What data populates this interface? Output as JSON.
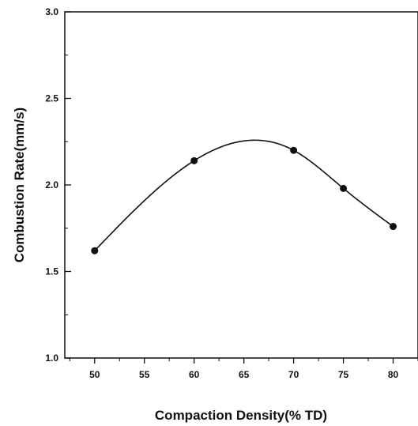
{
  "chart_data": {
    "type": "line",
    "xlabel": "Compaction Density(% TD)",
    "ylabel": "Combustion Rate(mm/s)",
    "xlim": [
      47,
      82.5
    ],
    "ylim": [
      1.0,
      3.0
    ],
    "x_ticks": [
      "50",
      "55",
      "60",
      "65",
      "70",
      "75",
      "80"
    ],
    "y_ticks": [
      "1.0",
      "1.5",
      "2.0",
      "2.5",
      "3.0"
    ],
    "grid": false,
    "smooth_curve": true,
    "series": [
      {
        "x": [
          50,
          60,
          70,
          75,
          80
        ],
        "y": [
          1.62,
          2.14,
          2.2,
          1.98,
          1.76
        ]
      }
    ]
  }
}
